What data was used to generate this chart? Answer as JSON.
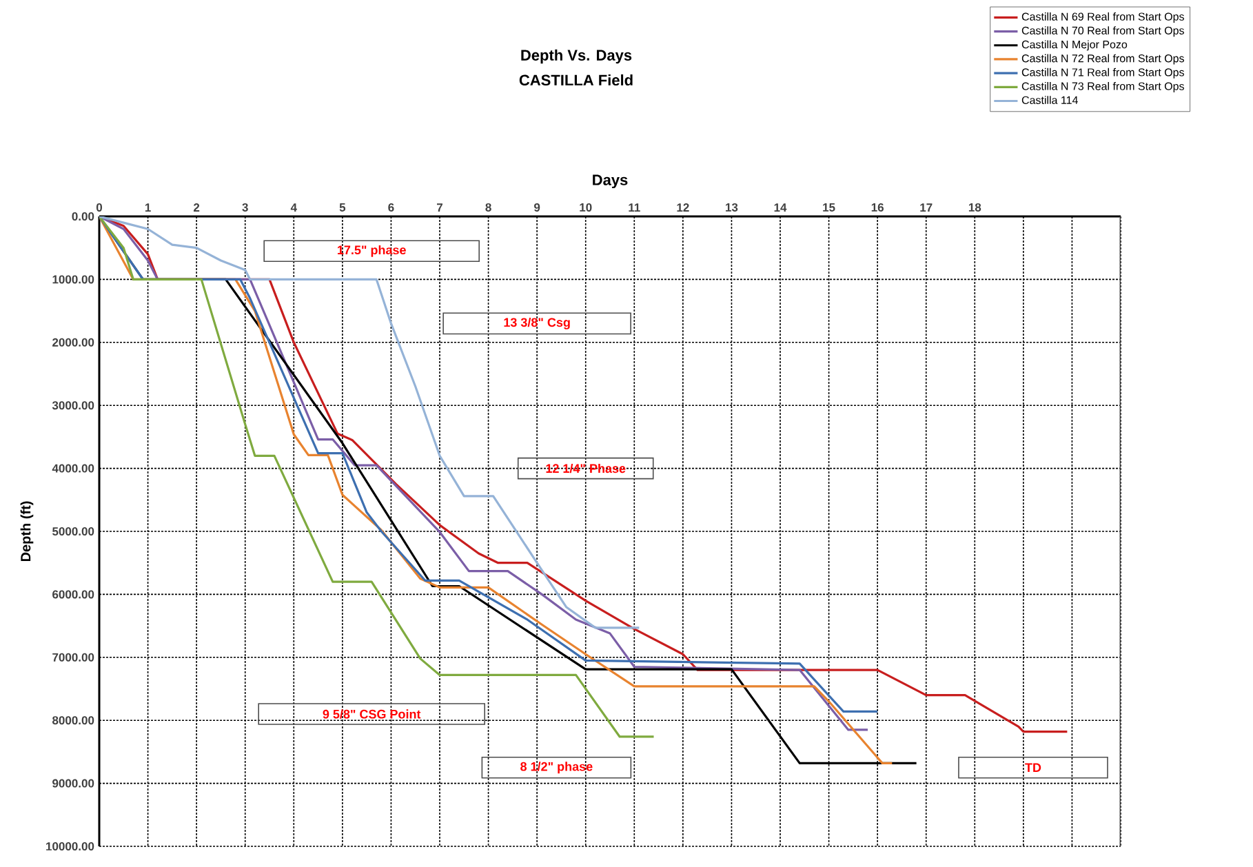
{
  "chart_data": {
    "type": "line",
    "title": "Depth Vs. Days",
    "subtitle": "CASTILLA Field",
    "xlabel": "Days",
    "ylabel": "Depth (ft)",
    "xlim": [
      0,
      21
    ],
    "ylim": [
      10000,
      0
    ],
    "xticks": [
      0,
      1,
      2,
      3,
      4,
      5,
      6,
      7,
      8,
      9,
      10,
      11,
      12,
      13,
      14,
      15,
      16,
      17,
      18,
      {
        "value": 19,
        "label": null
      },
      {
        "value": 20,
        "label": null
      },
      {
        "value": 21,
        "label": null
      }
    ],
    "yticks": [
      {
        "value": 0,
        "label": "0.00"
      },
      {
        "value": 1000,
        "label": "1000.00"
      },
      {
        "value": 2000,
        "label": "2000.00"
      },
      {
        "value": 3000,
        "label": "3000.00"
      },
      {
        "value": 4000,
        "label": "4000.00"
      },
      {
        "value": 5000,
        "label": "5000.00"
      },
      {
        "value": 6000,
        "label": "6000.00"
      },
      {
        "value": 7000,
        "label": "7000.00"
      },
      {
        "value": 8000,
        "label": "8000.00"
      },
      {
        "value": 9000,
        "label": "9000.00"
      },
      {
        "value": 10000,
        "label": "10000.00"
      }
    ],
    "grid": true,
    "legend": "top right",
    "series": [
      {
        "name": "Castilla N 69 Real from Start Ops",
        "color": "#c81e1e",
        "x": [
          0,
          0.5,
          1.0,
          1.2,
          3.5,
          4.0,
          4.9,
          5.2,
          6.1,
          7.0,
          7.8,
          8.2,
          8.8,
          10.0,
          11.0,
          12.0,
          12.3,
          16.0,
          17.0,
          17.8,
          18.9,
          19.0,
          19.9
        ],
        "values": [
          0,
          150,
          600,
          1000,
          1000,
          2000,
          3450,
          3550,
          4250,
          4900,
          5350,
          5500,
          5500,
          6100,
          6550,
          6950,
          7200,
          7200,
          7600,
          7600,
          8100,
          8180,
          8180
        ]
      },
      {
        "name": "Castilla N 70 Real from Start Ops",
        "color": "#7b5ea7",
        "x": [
          0,
          0.5,
          1.0,
          1.2,
          3.1,
          4.5,
          4.8,
          5.25,
          5.7,
          7.0,
          7.6,
          8.4,
          9.1,
          9.8,
          10.5,
          11.0,
          14.4,
          15.4,
          15.8
        ],
        "values": [
          0,
          200,
          700,
          1000,
          1000,
          3540,
          3540,
          3950,
          3950,
          5010,
          5630,
          5630,
          6000,
          6400,
          6620,
          7150,
          7200,
          8150,
          8150
        ]
      },
      {
        "name": "Castilla N Mejor Pozo",
        "color": "#000000",
        "x": [
          0,
          0.9,
          2.6,
          5.0,
          6.85,
          7.4,
          10.0,
          13.0,
          14.4,
          16.8
        ],
        "values": [
          0,
          1000,
          1000,
          3600,
          5870,
          5870,
          7190,
          7190,
          8680,
          8680
        ]
      },
      {
        "name": "Castilla N 72 Real from Start Ops",
        "color": "#e8832f",
        "x": [
          0,
          0.7,
          2.8,
          3.2,
          4.0,
          4.3,
          4.7,
          5.0,
          5.8,
          6.6,
          7.0,
          8.0,
          9.1,
          10.0,
          11.0,
          14.7,
          15.0,
          16.1,
          16.3
        ],
        "values": [
          0,
          1000,
          1000,
          1500,
          3460,
          3790,
          3790,
          4420,
          4980,
          5750,
          5890,
          5890,
          6480,
          6950,
          7460,
          7460,
          7700,
          8680,
          8680
        ]
      },
      {
        "name": "Castilla N 71 Real from Start Ops",
        "color": "#3d6fb0",
        "x": [
          0,
          0.9,
          2.9,
          3.1,
          4.5,
          5.0,
          5.5,
          5.8,
          6.7,
          7.4,
          8.8,
          10.0,
          14.4,
          15.3,
          16.0
        ],
        "values": [
          0,
          1000,
          1000,
          1300,
          3760,
          3760,
          4700,
          5000,
          5780,
          5780,
          6400,
          7050,
          7100,
          7860,
          7860
        ]
      },
      {
        "name": "Castilla N 73 Real from Start Ops",
        "color": "#7faa3f",
        "x": [
          0,
          0.5,
          0.7,
          2.1,
          3.0,
          3.2,
          3.6,
          4.2,
          4.8,
          5.6,
          6.6,
          7.0,
          9.8,
          10.7,
          11.4
        ],
        "values": [
          0,
          500,
          1000,
          1000,
          3300,
          3800,
          3800,
          4800,
          5800,
          5800,
          7020,
          7280,
          7280,
          8260,
          8260
        ]
      },
      {
        "name": "Castilla 114",
        "color": "#95b3d7",
        "x": [
          0,
          0.5,
          1.0,
          1.5,
          2.0,
          2.5,
          3.0,
          3.1,
          5.7,
          6.0,
          6.5,
          7.0,
          7.5,
          8.1,
          9.0,
          9.6,
          10.2,
          11.1
        ],
        "values": [
          0,
          100,
          200,
          450,
          500,
          700,
          850,
          1000,
          1000,
          1700,
          2700,
          3800,
          4440,
          4440,
          5500,
          6200,
          6530,
          6530
        ]
      }
    ],
    "annotations": [
      "17.5\" phase",
      "13 3/8\" Csg",
      "12 1/4\" Phase",
      "9 5/8\" CSG Point",
      "8 1/2\" phase",
      "TD"
    ]
  }
}
